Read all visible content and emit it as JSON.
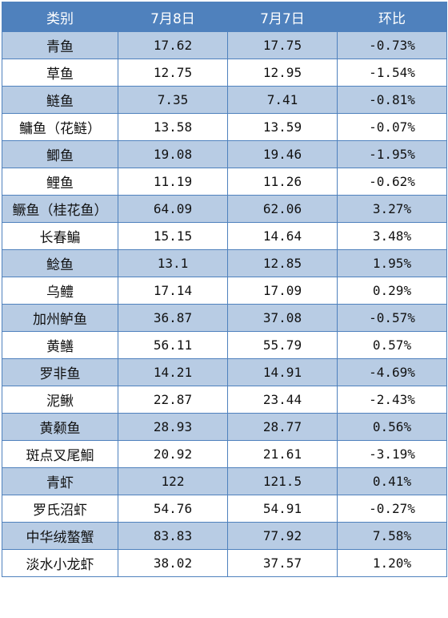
{
  "columns": [
    "类别",
    "7月8日",
    "7月7日",
    "环比"
  ],
  "rows": [
    {
      "category": "青鱼",
      "jul8": "17.62",
      "jul7": "17.75",
      "change": "-0.73%"
    },
    {
      "category": "草鱼",
      "jul8": "12.75",
      "jul7": "12.95",
      "change": "-1.54%"
    },
    {
      "category": "鲢鱼",
      "jul8": "7.35",
      "jul7": "7.41",
      "change": "-0.81%"
    },
    {
      "category": "鳙鱼（花鲢）",
      "jul8": "13.58",
      "jul7": "13.59",
      "change": "-0.07%"
    },
    {
      "category": "鲫鱼",
      "jul8": "19.08",
      "jul7": "19.46",
      "change": "-1.95%"
    },
    {
      "category": "鲤鱼",
      "jul8": "11.19",
      "jul7": "11.26",
      "change": "-0.62%"
    },
    {
      "category": "鳜鱼（桂花鱼）",
      "jul8": "64.09",
      "jul7": "62.06",
      "change": "3.27%"
    },
    {
      "category": "长春鳊",
      "jul8": "15.15",
      "jul7": "14.64",
      "change": "3.48%"
    },
    {
      "category": "鲶鱼",
      "jul8": "13.1",
      "jul7": "12.85",
      "change": "1.95%"
    },
    {
      "category": "乌鳢",
      "jul8": "17.14",
      "jul7": "17.09",
      "change": "0.29%"
    },
    {
      "category": "加州鲈鱼",
      "jul8": "36.87",
      "jul7": "37.08",
      "change": "-0.57%"
    },
    {
      "category": "黄鳝",
      "jul8": "56.11",
      "jul7": "55.79",
      "change": "0.57%"
    },
    {
      "category": "罗非鱼",
      "jul8": "14.21",
      "jul7": "14.91",
      "change": "-4.69%"
    },
    {
      "category": "泥鳅",
      "jul8": "22.87",
      "jul7": "23.44",
      "change": "-2.43%"
    },
    {
      "category": "黄颡鱼",
      "jul8": "28.93",
      "jul7": "28.77",
      "change": "0.56%"
    },
    {
      "category": "斑点叉尾鮰",
      "jul8": "20.92",
      "jul7": "21.61",
      "change": "-3.19%"
    },
    {
      "category": "青虾",
      "jul8": "122",
      "jul7": "121.5",
      "change": "0.41%"
    },
    {
      "category": "罗氏沼虾",
      "jul8": "54.76",
      "jul7": "54.91",
      "change": "-0.27%"
    },
    {
      "category": "中华绒螯蟹",
      "jul8": "83.83",
      "jul7": "77.92",
      "change": "7.58%"
    },
    {
      "category": "淡水小龙虾",
      "jul8": "38.02",
      "jul7": "37.57",
      "change": "1.20%"
    }
  ],
  "colors": {
    "header": "#4f81bd",
    "shade": "#b8cce4",
    "border": "#4f81bd"
  }
}
